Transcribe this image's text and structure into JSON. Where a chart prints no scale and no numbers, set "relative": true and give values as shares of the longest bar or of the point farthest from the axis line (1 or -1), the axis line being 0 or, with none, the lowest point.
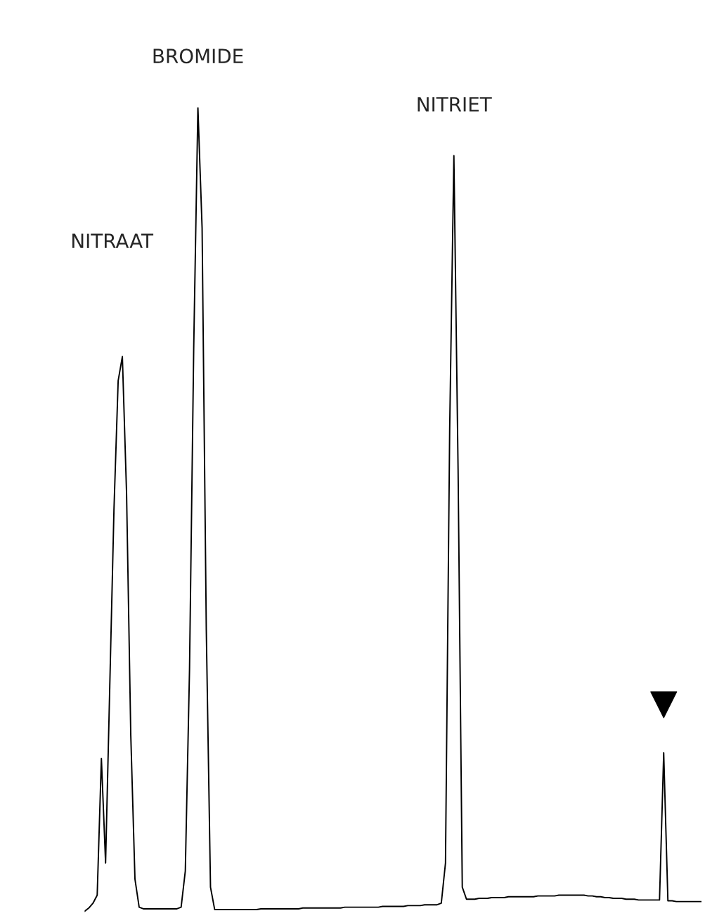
{
  "chart_data": {
    "type": "line",
    "relative": true,
    "categories": [
      null,
      null,
      null,
      null,
      null,
      null,
      null,
      null,
      null,
      null,
      null,
      null,
      null,
      null,
      null,
      null,
      null,
      null,
      null,
      null,
      null,
      null,
      null,
      null,
      null,
      null,
      null,
      null,
      null,
      null,
      null,
      null,
      null,
      null,
      null,
      null,
      null,
      null,
      null,
      null,
      null,
      null,
      null,
      null,
      null,
      null,
      null,
      null,
      null,
      null,
      null,
      null,
      null,
      null,
      null,
      null,
      null,
      null,
      null,
      null,
      null,
      null,
      null,
      null,
      null,
      null,
      null,
      null,
      null,
      null,
      null,
      null,
      null,
      null,
      null,
      null,
      null,
      null,
      null,
      null,
      null,
      null,
      null,
      null,
      null,
      null,
      null,
      null,
      null,
      null,
      null,
      null,
      null,
      null,
      null,
      null,
      null,
      null,
      null,
      null,
      null,
      null,
      null,
      null,
      null,
      null,
      null,
      null,
      null,
      null,
      null,
      null,
      null,
      null,
      null,
      null,
      null,
      null,
      null,
      null,
      null,
      null,
      null,
      null,
      null,
      null,
      null,
      null,
      null,
      null,
      null,
      null,
      null,
      null,
      null,
      null,
      null,
      null,
      null,
      null,
      null,
      null,
      null,
      null,
      null,
      null,
      null,
      null
    ],
    "series": [
      {
        "color": "#000000",
        "values": [
          0.0,
          0.004,
          0.01,
          0.02,
          0.19,
          0.06,
          0.28,
          0.5,
          0.66,
          0.69,
          0.52,
          0.22,
          0.04,
          0.005,
          0.003,
          0.003,
          0.003,
          0.003,
          0.003,
          0.003,
          0.003,
          0.003,
          0.003,
          0.005,
          0.05,
          0.3,
          0.7,
          1.0,
          0.85,
          0.35,
          0.03,
          0.002,
          0.002,
          0.002,
          0.002,
          0.002,
          0.002,
          0.002,
          0.002,
          0.002,
          0.002,
          0.002,
          0.003,
          0.003,
          0.003,
          0.003,
          0.003,
          0.003,
          0.003,
          0.003,
          0.003,
          0.003,
          0.004,
          0.004,
          0.004,
          0.004,
          0.004,
          0.004,
          0.004,
          0.004,
          0.004,
          0.004,
          0.005,
          0.005,
          0.005,
          0.005,
          0.005,
          0.005,
          0.005,
          0.005,
          0.005,
          0.006,
          0.006,
          0.006,
          0.006,
          0.006,
          0.006,
          0.007,
          0.007,
          0.007,
          0.007,
          0.008,
          0.008,
          0.008,
          0.008,
          0.01,
          0.06,
          0.6,
          0.94,
          0.55,
          0.03,
          0.015,
          0.015,
          0.015,
          0.016,
          0.016,
          0.016,
          0.017,
          0.017,
          0.017,
          0.017,
          0.018,
          0.018,
          0.018,
          0.018,
          0.018,
          0.018,
          0.018,
          0.019,
          0.019,
          0.019,
          0.019,
          0.019,
          0.02,
          0.02,
          0.02,
          0.02,
          0.02,
          0.02,
          0.02,
          0.019,
          0.019,
          0.018,
          0.018,
          0.017,
          0.017,
          0.016,
          0.016,
          0.016,
          0.015,
          0.015,
          0.015,
          0.014,
          0.014,
          0.014,
          0.014,
          0.014,
          0.014,
          0.197,
          0.013,
          0.013,
          0.012,
          0.012,
          0.012,
          0.012,
          0.012,
          0.012,
          0.012
        ]
      }
    ],
    "annotations": [
      "NITRAAT",
      "BROMIDE",
      "NITRIET"
    ],
    "line_style": "solid",
    "marker": "none"
  }
}
